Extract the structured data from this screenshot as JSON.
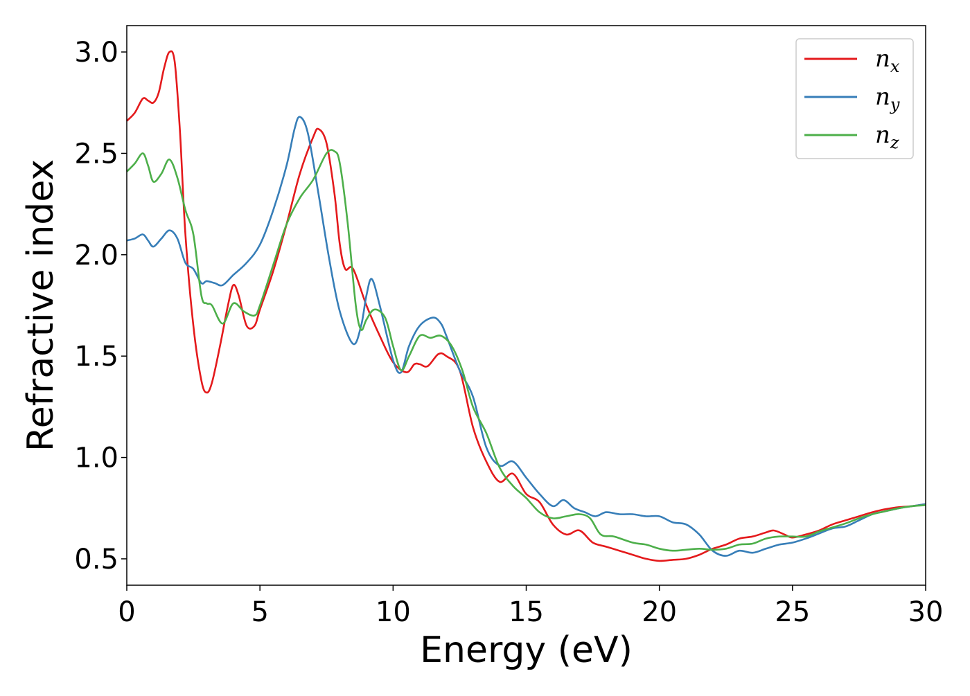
{
  "chart_data": {
    "type": "line",
    "xlabel": "Energy (eV)",
    "ylabel": "Refractive index",
    "xlim": [
      0,
      30
    ],
    "ylim": [
      0.37,
      3.13
    ],
    "x_ticks": [
      0,
      5,
      10,
      15,
      20,
      25,
      30
    ],
    "x_tick_labels": [
      "0",
      "5",
      "10",
      "15",
      "20",
      "25",
      "30"
    ],
    "y_ticks": [
      0.5,
      1.0,
      1.5,
      2.0,
      2.5,
      3.0
    ],
    "y_tick_labels": [
      "0.5",
      "1.0",
      "1.5",
      "2.0",
      "2.5",
      "3.0"
    ],
    "grid": false,
    "legend_position": "top-right",
    "series": [
      {
        "name": "n",
        "subscript": "x",
        "color": "#e41a1c",
        "points": [
          [
            0,
            2.66
          ],
          [
            0.3,
            2.7
          ],
          [
            0.6,
            2.77
          ],
          [
            0.8,
            2.76
          ],
          [
            1.0,
            2.75
          ],
          [
            1.2,
            2.8
          ],
          [
            1.4,
            2.92
          ],
          [
            1.6,
            3.0
          ],
          [
            1.8,
            2.95
          ],
          [
            2.0,
            2.6
          ],
          [
            2.2,
            2.1
          ],
          [
            2.5,
            1.65
          ],
          [
            2.8,
            1.38
          ],
          [
            3.0,
            1.32
          ],
          [
            3.2,
            1.37
          ],
          [
            3.5,
            1.55
          ],
          [
            3.8,
            1.75
          ],
          [
            4.0,
            1.85
          ],
          [
            4.2,
            1.8
          ],
          [
            4.5,
            1.65
          ],
          [
            4.8,
            1.65
          ],
          [
            5.0,
            1.73
          ],
          [
            5.5,
            1.92
          ],
          [
            6.0,
            2.15
          ],
          [
            6.5,
            2.4
          ],
          [
            7.0,
            2.58
          ],
          [
            7.2,
            2.62
          ],
          [
            7.5,
            2.55
          ],
          [
            7.8,
            2.3
          ],
          [
            8.0,
            2.05
          ],
          [
            8.2,
            1.93
          ],
          [
            8.5,
            1.93
          ],
          [
            9.0,
            1.75
          ],
          [
            9.5,
            1.6
          ],
          [
            10.0,
            1.47
          ],
          [
            10.5,
            1.42
          ],
          [
            10.8,
            1.46
          ],
          [
            11.0,
            1.46
          ],
          [
            11.3,
            1.45
          ],
          [
            11.7,
            1.51
          ],
          [
            12.0,
            1.5
          ],
          [
            12.5,
            1.43
          ],
          [
            13.0,
            1.15
          ],
          [
            13.5,
            0.98
          ],
          [
            14.0,
            0.88
          ],
          [
            14.5,
            0.92
          ],
          [
            15.0,
            0.82
          ],
          [
            15.5,
            0.78
          ],
          [
            16.0,
            0.67
          ],
          [
            16.5,
            0.62
          ],
          [
            17.0,
            0.64
          ],
          [
            17.5,
            0.58
          ],
          [
            18.0,
            0.56
          ],
          [
            18.5,
            0.54
          ],
          [
            19.0,
            0.52
          ],
          [
            19.5,
            0.5
          ],
          [
            20.0,
            0.49
          ],
          [
            20.5,
            0.495
          ],
          [
            21.0,
            0.5
          ],
          [
            21.5,
            0.52
          ],
          [
            22.0,
            0.55
          ],
          [
            22.5,
            0.57
          ],
          [
            23.0,
            0.6
          ],
          [
            23.5,
            0.61
          ],
          [
            24.0,
            0.63
          ],
          [
            24.3,
            0.64
          ],
          [
            24.7,
            0.62
          ],
          [
            25.0,
            0.605
          ],
          [
            25.5,
            0.62
          ],
          [
            26.0,
            0.64
          ],
          [
            26.5,
            0.67
          ],
          [
            27.0,
            0.69
          ],
          [
            27.5,
            0.71
          ],
          [
            28.0,
            0.73
          ],
          [
            28.5,
            0.745
          ],
          [
            29.0,
            0.755
          ],
          [
            29.5,
            0.76
          ],
          [
            30.0,
            0.77
          ]
        ]
      },
      {
        "name": "n",
        "subscript": "y",
        "color": "#377eb8",
        "points": [
          [
            0,
            2.07
          ],
          [
            0.3,
            2.08
          ],
          [
            0.6,
            2.1
          ],
          [
            0.8,
            2.07
          ],
          [
            1.0,
            2.04
          ],
          [
            1.3,
            2.08
          ],
          [
            1.6,
            2.12
          ],
          [
            1.9,
            2.08
          ],
          [
            2.2,
            1.96
          ],
          [
            2.5,
            1.93
          ],
          [
            2.8,
            1.86
          ],
          [
            3.0,
            1.87
          ],
          [
            3.3,
            1.86
          ],
          [
            3.6,
            1.85
          ],
          [
            4.0,
            1.9
          ],
          [
            4.5,
            1.96
          ],
          [
            5.0,
            2.05
          ],
          [
            5.5,
            2.22
          ],
          [
            6.0,
            2.44
          ],
          [
            6.3,
            2.62
          ],
          [
            6.5,
            2.68
          ],
          [
            6.8,
            2.6
          ],
          [
            7.2,
            2.3
          ],
          [
            7.6,
            1.98
          ],
          [
            8.0,
            1.72
          ],
          [
            8.5,
            1.56
          ],
          [
            8.8,
            1.65
          ],
          [
            9.0,
            1.8
          ],
          [
            9.2,
            1.88
          ],
          [
            9.5,
            1.75
          ],
          [
            10.0,
            1.48
          ],
          [
            10.3,
            1.42
          ],
          [
            10.6,
            1.55
          ],
          [
            11.0,
            1.65
          ],
          [
            11.5,
            1.69
          ],
          [
            11.8,
            1.66
          ],
          [
            12.0,
            1.6
          ],
          [
            12.5,
            1.43
          ],
          [
            13.0,
            1.3
          ],
          [
            13.5,
            1.05
          ],
          [
            14.0,
            0.96
          ],
          [
            14.5,
            0.98
          ],
          [
            15.0,
            0.9
          ],
          [
            15.5,
            0.82
          ],
          [
            16.0,
            0.76
          ],
          [
            16.4,
            0.79
          ],
          [
            16.8,
            0.75
          ],
          [
            17.2,
            0.73
          ],
          [
            17.6,
            0.71
          ],
          [
            18.0,
            0.73
          ],
          [
            18.5,
            0.72
          ],
          [
            19.0,
            0.72
          ],
          [
            19.5,
            0.71
          ],
          [
            20.0,
            0.71
          ],
          [
            20.5,
            0.68
          ],
          [
            21.0,
            0.67
          ],
          [
            21.5,
            0.62
          ],
          [
            22.0,
            0.54
          ],
          [
            22.5,
            0.515
          ],
          [
            23.0,
            0.54
          ],
          [
            23.5,
            0.53
          ],
          [
            24.0,
            0.55
          ],
          [
            24.5,
            0.57
          ],
          [
            25.0,
            0.58
          ],
          [
            25.5,
            0.6
          ],
          [
            26.0,
            0.625
          ],
          [
            26.5,
            0.65
          ],
          [
            27.0,
            0.66
          ],
          [
            27.5,
            0.69
          ],
          [
            28.0,
            0.72
          ],
          [
            28.5,
            0.735
          ],
          [
            29.0,
            0.75
          ],
          [
            29.5,
            0.76
          ],
          [
            30.0,
            0.77
          ]
        ]
      },
      {
        "name": "n",
        "subscript": "z",
        "color": "#4daf4a",
        "points": [
          [
            0,
            2.41
          ],
          [
            0.3,
            2.45
          ],
          [
            0.6,
            2.5
          ],
          [
            0.8,
            2.44
          ],
          [
            1.0,
            2.36
          ],
          [
            1.3,
            2.4
          ],
          [
            1.6,
            2.47
          ],
          [
            1.9,
            2.38
          ],
          [
            2.2,
            2.22
          ],
          [
            2.5,
            2.1
          ],
          [
            2.8,
            1.8
          ],
          [
            3.0,
            1.76
          ],
          [
            3.2,
            1.75
          ],
          [
            3.6,
            1.66
          ],
          [
            4.0,
            1.76
          ],
          [
            4.4,
            1.72
          ],
          [
            4.8,
            1.7
          ],
          [
            5.0,
            1.75
          ],
          [
            5.5,
            1.95
          ],
          [
            6.0,
            2.15
          ],
          [
            6.5,
            2.28
          ],
          [
            7.0,
            2.37
          ],
          [
            7.5,
            2.5
          ],
          [
            7.8,
            2.51
          ],
          [
            8.0,
            2.45
          ],
          [
            8.3,
            2.15
          ],
          [
            8.6,
            1.75
          ],
          [
            8.8,
            1.63
          ],
          [
            9.0,
            1.68
          ],
          [
            9.3,
            1.73
          ],
          [
            9.7,
            1.69
          ],
          [
            10.0,
            1.55
          ],
          [
            10.3,
            1.43
          ],
          [
            10.6,
            1.5
          ],
          [
            11.0,
            1.6
          ],
          [
            11.4,
            1.59
          ],
          [
            11.8,
            1.6
          ],
          [
            12.2,
            1.55
          ],
          [
            12.6,
            1.43
          ],
          [
            13.0,
            1.25
          ],
          [
            13.5,
            1.12
          ],
          [
            14.0,
            0.95
          ],
          [
            14.5,
            0.86
          ],
          [
            15.0,
            0.8
          ],
          [
            15.5,
            0.73
          ],
          [
            16.0,
            0.7
          ],
          [
            16.5,
            0.71
          ],
          [
            17.0,
            0.72
          ],
          [
            17.4,
            0.7
          ],
          [
            17.8,
            0.62
          ],
          [
            18.3,
            0.61
          ],
          [
            19.0,
            0.58
          ],
          [
            19.5,
            0.57
          ],
          [
            20.0,
            0.55
          ],
          [
            20.5,
            0.54
          ],
          [
            21.0,
            0.545
          ],
          [
            21.5,
            0.55
          ],
          [
            22.0,
            0.545
          ],
          [
            22.5,
            0.55
          ],
          [
            23.0,
            0.57
          ],
          [
            23.5,
            0.575
          ],
          [
            24.0,
            0.6
          ],
          [
            24.5,
            0.61
          ],
          [
            25.0,
            0.61
          ],
          [
            25.5,
            0.61
          ],
          [
            26.0,
            0.635
          ],
          [
            26.5,
            0.655
          ],
          [
            27.0,
            0.675
          ],
          [
            27.5,
            0.7
          ],
          [
            28.0,
            0.72
          ],
          [
            28.5,
            0.735
          ],
          [
            29.0,
            0.75
          ],
          [
            29.5,
            0.76
          ],
          [
            30.0,
            0.765
          ]
        ]
      }
    ]
  }
}
